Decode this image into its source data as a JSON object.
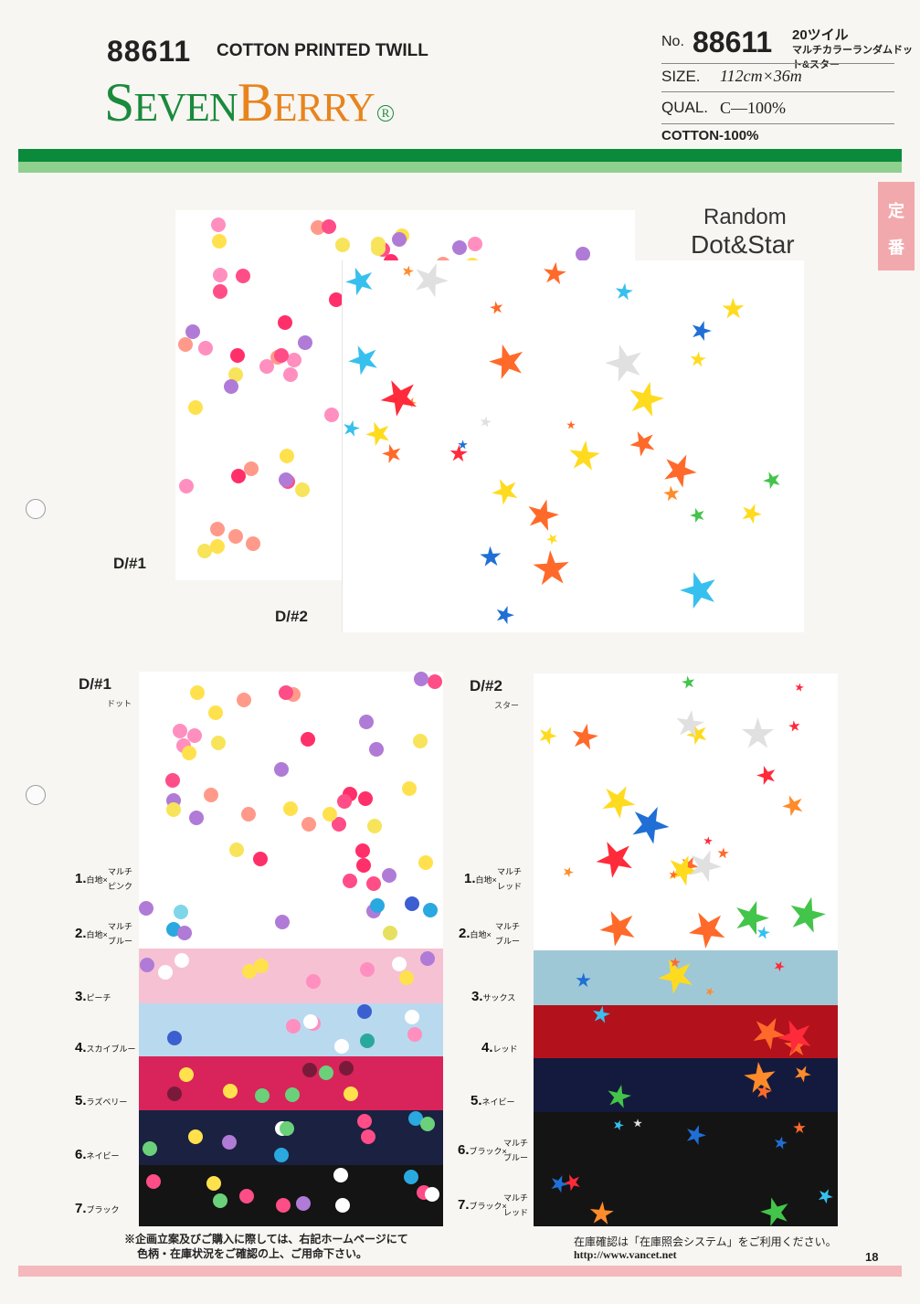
{
  "header": {
    "article_no": "88611",
    "product_type": "COTTON PRINTED TWILL",
    "brand": {
      "initial": "S",
      "part1": "EVEN",
      "part2": "B",
      "part3": "ERRY",
      "reg": "R"
    },
    "no_label": "No.",
    "no_value": "88611",
    "jp_title_line1": "20ツイル",
    "jp_title_line2": "マルチカラーランダムドット&スター",
    "size_label": "SIZE.",
    "size_value": "112cm×36m",
    "qual_label": "QUAL.",
    "qual_value": "C—100%",
    "composition": "COTTON-100%"
  },
  "side_tag": {
    "line1": "定",
    "line2": "番"
  },
  "hero": {
    "title_line1": "Random",
    "title_line2": "Dot&Star",
    "label_d1": "D/#1",
    "label_d2": "D/#2"
  },
  "designs": [
    {
      "label": "D/#1",
      "sub": "ドット",
      "colors": [
        {
          "no": "1.",
          "name_small": "白地×",
          "name_small2": "マルチ",
          "name_small3": "ピンク"
        },
        {
          "no": "2.",
          "name_small": "白地×",
          "name_small2": "マルチ",
          "name_small3": "ブルー"
        },
        {
          "no": "3.",
          "name_small": "ピーチ"
        },
        {
          "no": "4.",
          "name_small": "スカイブルー"
        },
        {
          "no": "5.",
          "name_small": "ラズベリー"
        },
        {
          "no": "6.",
          "name_small": "ネイビー"
        },
        {
          "no": "7.",
          "name_small": "ブラック"
        }
      ]
    },
    {
      "label": "D/#2",
      "sub": "スター",
      "colors": [
        {
          "no": "1.",
          "name_small": "白地×",
          "name_small2": "マルチ",
          "name_small3": "レッド"
        },
        {
          "no": "2.",
          "name_small": "白地×",
          "name_small2": "マルチ",
          "name_small3": "ブルー"
        },
        {
          "no": "3.",
          "name_small": "サックス"
        },
        {
          "no": "4.",
          "name_small": "レッド"
        },
        {
          "no": "5.",
          "name_small": "ネイビー"
        },
        {
          "no": "6.",
          "name_small": "ブラック×",
          "name_small2": "マルチ",
          "name_small3": "ブルー"
        },
        {
          "no": "7.",
          "name_small": "ブラック×",
          "name_small2": "マルチ",
          "name_small3": "レッド"
        }
      ]
    }
  ],
  "footer": {
    "note_line1": "※企画立案及びご購入に際しては、右記ホームページにて",
    "note_line2": "色柄・在庫状況をご確認の上、ご用命下さい。",
    "stock_line": "在庫確認は「在庫照会システム」をご利用ください。",
    "url": "http://www.vancet.net",
    "page": "18"
  },
  "colors": {
    "green_dark": "#0a8a3a",
    "green_light": "#8fd08f",
    "brand_green": "#1a8a3c",
    "brand_orange": "#e8841e",
    "tag_pink": "#f2a9ad",
    "footer_pink": "#f4b8bd",
    "d1_bands": [
      "#ffffff",
      "#ffffff",
      "#f6c1d3",
      "#b9d9ef",
      "#d8245a",
      "#1b2140",
      "#141414"
    ],
    "d2_bands": [
      "#ffffff",
      "#ffffff",
      "#9fc8d6",
      "#b3121c",
      "#141a3d",
      "#141414",
      "#141414"
    ]
  }
}
